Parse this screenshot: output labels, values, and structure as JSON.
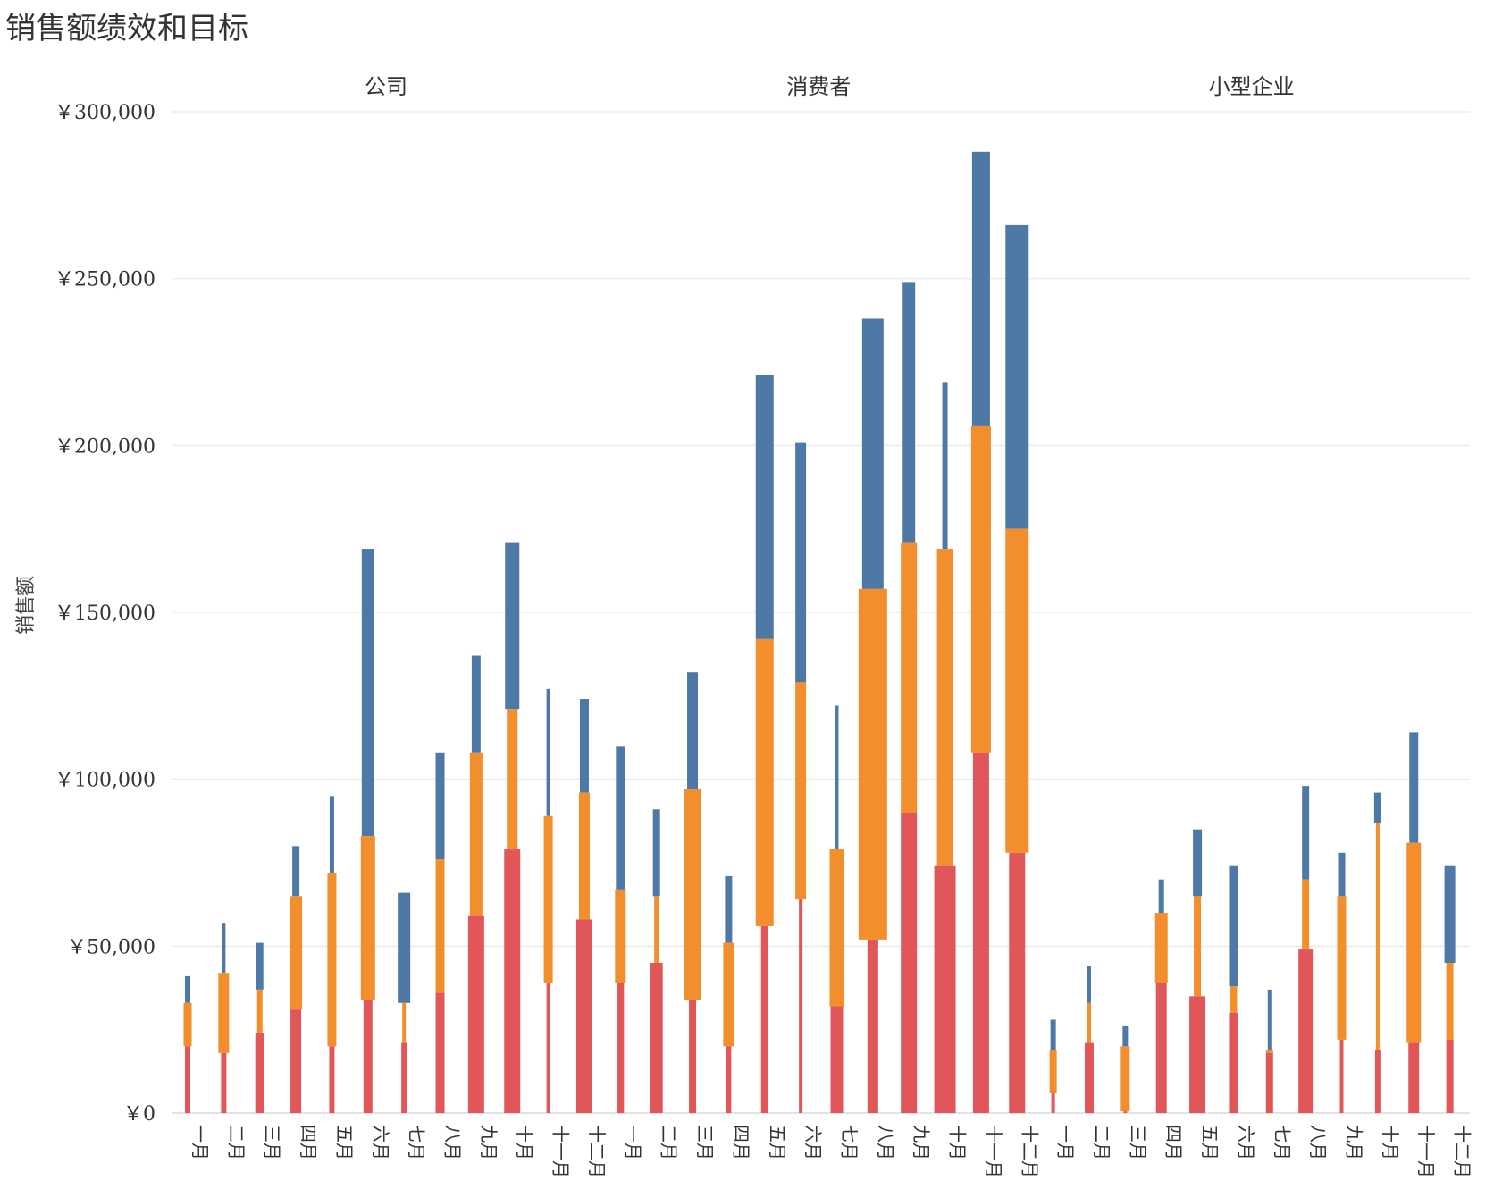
{
  "title": "销售额绩效和目标",
  "chart_data": {
    "type": "bar",
    "title": "销售额绩效和目标",
    "ylabel": "销售额",
    "xlabel": "",
    "ylim": [
      0,
      300000
    ],
    "yticks": [
      0,
      50000,
      100000,
      150000,
      200000,
      250000,
      300000
    ],
    "ytick_labels": [
      "￥0",
      "￥50,000",
      "￥100,000",
      "￥150,000",
      "￥200,000",
      "￥250,000",
      "￥300,000"
    ],
    "grid": true,
    "colors": {
      "upper": "#4e79a7",
      "middle": "#f28e2b",
      "lower": "#e15759"
    },
    "months": [
      "一月",
      "二月",
      "三月",
      "四月",
      "五月",
      "六月",
      "七月",
      "八月",
      "九月",
      "十月",
      "十一月",
      "十二月"
    ],
    "panels": [
      {
        "name": "公司",
        "bars": [
          {
            "month": "一月",
            "lower": 20000,
            "middle": 33000,
            "upper": 41000,
            "w_upper": 6,
            "w_middle": 9,
            "w_lower": 6
          },
          {
            "month": "二月",
            "lower": 18000,
            "middle": 42000,
            "upper": 57000,
            "w_upper": 4,
            "w_middle": 12,
            "w_lower": 6
          },
          {
            "month": "三月",
            "lower": 24000,
            "middle": 37000,
            "upper": 51000,
            "w_upper": 8,
            "w_middle": 6,
            "w_lower": 10
          },
          {
            "month": "四月",
            "lower": 31000,
            "middle": 65000,
            "upper": 80000,
            "w_upper": 8,
            "w_middle": 14,
            "w_lower": 12
          },
          {
            "month": "五月",
            "lower": 20000,
            "middle": 72000,
            "upper": 95000,
            "w_upper": 5,
            "w_middle": 10,
            "w_lower": 6
          },
          {
            "month": "六月",
            "lower": 34000,
            "middle": 83000,
            "upper": 169000,
            "w_upper": 14,
            "w_middle": 16,
            "w_lower": 10
          },
          {
            "month": "七月",
            "lower": 21000,
            "middle": 33000,
            "upper": 66000,
            "w_upper": 14,
            "w_middle": 4,
            "w_lower": 6
          },
          {
            "month": "八月",
            "lower": 36000,
            "middle": 76000,
            "upper": 108000,
            "w_upper": 10,
            "w_middle": 10,
            "w_lower": 10
          },
          {
            "month": "九月",
            "lower": 59000,
            "middle": 108000,
            "upper": 137000,
            "w_upper": 10,
            "w_middle": 14,
            "w_lower": 18
          },
          {
            "month": "十月",
            "lower": 79000,
            "middle": 121000,
            "upper": 171000,
            "w_upper": 16,
            "w_middle": 12,
            "w_lower": 18
          },
          {
            "month": "十一月",
            "lower": 39000,
            "middle": 89000,
            "upper": 127000,
            "w_upper": 4,
            "w_middle": 10,
            "w_lower": 4
          },
          {
            "month": "十二月",
            "lower": 58000,
            "middle": 96000,
            "upper": 124000,
            "w_upper": 10,
            "w_middle": 12,
            "w_lower": 18
          }
        ]
      },
      {
        "name": "消费者",
        "bars": [
          {
            "month": "一月",
            "lower": 39000,
            "middle": 67000,
            "upper": 110000,
            "w_upper": 10,
            "w_middle": 12,
            "w_lower": 8
          },
          {
            "month": "二月",
            "lower": 45000,
            "middle": 65000,
            "upper": 91000,
            "w_upper": 8,
            "w_middle": 5,
            "w_lower": 14
          },
          {
            "month": "三月",
            "lower": 34000,
            "middle": 97000,
            "upper": 132000,
            "w_upper": 12,
            "w_middle": 20,
            "w_lower": 8
          },
          {
            "month": "四月",
            "lower": 20000,
            "middle": 51000,
            "upper": 71000,
            "w_upper": 8,
            "w_middle": 12,
            "w_lower": 6
          },
          {
            "month": "五月",
            "lower": 56000,
            "middle": 142000,
            "upper": 221000,
            "w_upper": 20,
            "w_middle": 20,
            "w_lower": 8
          },
          {
            "month": "六月",
            "lower": 64000,
            "middle": 129000,
            "upper": 201000,
            "w_upper": 12,
            "w_middle": 12,
            "w_lower": 4
          },
          {
            "month": "七月",
            "lower": 32000,
            "middle": 79000,
            "upper": 122000,
            "w_upper": 4,
            "w_middle": 16,
            "w_lower": 14
          },
          {
            "month": "八月",
            "lower": 52000,
            "middle": 157000,
            "upper": 238000,
            "w_upper": 24,
            "w_middle": 32,
            "w_lower": 12
          },
          {
            "month": "九月",
            "lower": 90000,
            "middle": 171000,
            "upper": 249000,
            "w_upper": 14,
            "w_middle": 18,
            "w_lower": 18
          },
          {
            "month": "十月",
            "lower": 74000,
            "middle": 169000,
            "upper": 219000,
            "w_upper": 6,
            "w_middle": 18,
            "w_lower": 24
          },
          {
            "month": "十一月",
            "lower": 108000,
            "middle": 206000,
            "upper": 288000,
            "w_upper": 20,
            "w_middle": 22,
            "w_lower": 18
          },
          {
            "month": "十二月",
            "lower": 78000,
            "middle": 175000,
            "upper": 266000,
            "w_upper": 26,
            "w_middle": 26,
            "w_lower": 18
          }
        ]
      },
      {
        "name": "小型企业",
        "bars": [
          {
            "month": "一月",
            "lower": 6000,
            "middle": 19000,
            "upper": 28000,
            "w_upper": 6,
            "w_middle": 8,
            "w_lower": 4
          },
          {
            "month": "二月",
            "lower": 21000,
            "middle": 33000,
            "upper": 44000,
            "w_upper": 4,
            "w_middle": 4,
            "w_lower": 10
          },
          {
            "month": "三月",
            "lower": 500,
            "middle": 20000,
            "upper": 26000,
            "w_upper": 6,
            "w_middle": 10,
            "w_lower": 4
          },
          {
            "month": "四月",
            "lower": 39000,
            "middle": 60000,
            "upper": 70000,
            "w_upper": 6,
            "w_middle": 14,
            "w_lower": 12
          },
          {
            "month": "五月",
            "lower": 35000,
            "middle": 65000,
            "upper": 85000,
            "w_upper": 10,
            "w_middle": 8,
            "w_lower": 18
          },
          {
            "month": "六月",
            "lower": 30000,
            "middle": 38000,
            "upper": 74000,
            "w_upper": 10,
            "w_middle": 8,
            "w_lower": 10
          },
          {
            "month": "七月",
            "lower": 18000,
            "middle": 19000,
            "upper": 37000,
            "w_upper": 4,
            "w_middle": 8,
            "w_lower": 8
          },
          {
            "month": "八月",
            "lower": 49000,
            "middle": 70000,
            "upper": 98000,
            "w_upper": 8,
            "w_middle": 8,
            "w_lower": 16
          },
          {
            "month": "九月",
            "lower": 22000,
            "middle": 65000,
            "upper": 78000,
            "w_upper": 8,
            "w_middle": 10,
            "w_lower": 4
          },
          {
            "month": "十月",
            "lower": 19000,
            "middle": 87000,
            "upper": 96000,
            "w_upper": 8,
            "w_middle": 4,
            "w_lower": 6
          },
          {
            "month": "十一月",
            "lower": 21000,
            "middle": 81000,
            "upper": 114000,
            "w_upper": 10,
            "w_middle": 16,
            "w_lower": 12
          },
          {
            "month": "十二月",
            "lower": 22000,
            "middle": 45000,
            "upper": 74000,
            "w_upper": 12,
            "w_middle": 8,
            "w_lower": 8
          }
        ]
      }
    ]
  }
}
